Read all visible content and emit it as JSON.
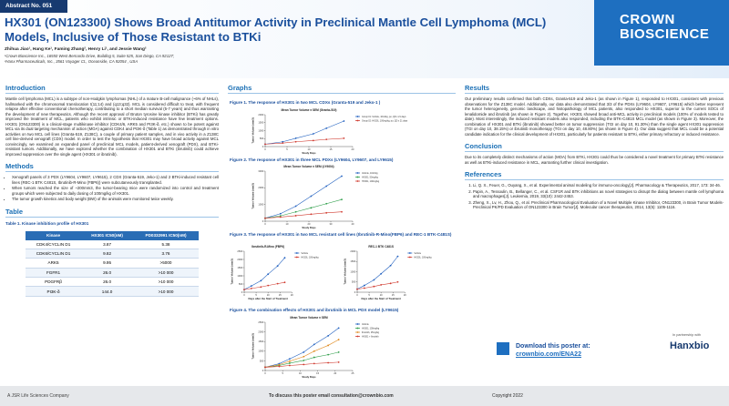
{
  "header": {
    "abstract": "Abstract No. 051",
    "title": "HX301 (ON123300) Shows Broad Antitumor Activity in Preclinical Mantle Cell Lymphoma (MCL) Models, Inclusive of Those Resistant to BTKi",
    "authors": "Zhihua Jiao¹, Hang Ke¹, Faming Zhang², Henry Li¹, and Jessie Wang²",
    "affiliations": [
      "¹Crown Bioscience Inc., 16550 West Bernardo Drive, Building 5, Suite 525, San Diego, CA 92127;",
      "²Hanx Pharmaceuticals, Inc., 3561 Voyager Ct., Oceanside, CA 92054 , USA"
    ],
    "logo": [
      "CROWN",
      "BIOSCIENCE"
    ]
  },
  "introduction": {
    "heading": "Introduction",
    "text": "Mantle cell lymphoma (MCL) is a subtype of non-Hodgkin lymphomas (NHL) of a mature B-cell malignance (~6% of NHLs), hallmarked with the chromosomal translocation t(11;14) and (q13;q32). MCL is considered difficult to treat, with frequent relapse after effective conventional chemotherapy, contributing to a short median survival (5-7 years) and thus warranting the development of new therapeutics. Although the recent approval of Bruton tyrosine kinase inhibitor (BTKi) has greatly improved the treatment of MCL, patients who exhibit intrinsic or BTKi-induced resistance have few treatment options. HX301 (ON123300) is a clinical-stage multikinase inhibitor (CDK4/6, ARK5 and PI3K-δ, etc.) shown to be potent against MCL via its dual targeting mechanism of action (MOA) against CDK4 and PI3K-δ (Table 1) as demonstrated through in vitro activities on two MCL cell lines (Granta-519, Z138C), a couple of primary patient samples, and in vivo activity in a Z138C cell line-derived xenograft (CDX) model. In order to test the hypothesis that HX301 may have broad activity against MCL convincingly, we examined an expanded panel of preclinical MCL models, patient-derived xenograft (PDX), and BTKi-resistant tumors. Additionally, we have explored whether the combination of HX301 and BTKi (ibrutinib) could achieve improved suppression over the single agent (HX301 or ibrutinib)."
  },
  "methods": {
    "heading": "Methods",
    "bullets": [
      "Xenograft panels of 3 PDX (LY9604, LY9607, LY9615), 2 CDX (Granta-519, Jeko-1) and 2 BTKi-induced resistant cell lines (REC-1 BTK C481S, Ibrutinib-R-Mino (FBP6)) were subcutaneously transplanted.",
      "When tumors reached the size of ~200mm3, the tumor-bearing mice were randomized into control and treatment groups which were subjected to daily dosing of 100mg/kg of HX301.",
      "The tumor growth kinetics and body weight (BW) of the animals were monitored twice weekly."
    ]
  },
  "table": {
    "heading": "Table",
    "caption": "Table 1. Kinase inhibition profile of HX301",
    "columns": [
      "Kinase",
      "HX301 IC50(nM)",
      "PD0332991 IC50(nM)"
    ],
    "rows": [
      [
        "CDK4/CYCLIN D1",
        "3.87",
        "5.38"
      ],
      [
        "CDK6/CYCLIN D1",
        "9.82",
        "3.76"
      ],
      [
        "ARK5",
        "9.95",
        ">5000"
      ],
      [
        "FGFR1",
        "26.0",
        ">10 000"
      ],
      [
        "PDGFRβ",
        "26.0",
        ">10 000"
      ],
      [
        "PI3K-δ",
        "144.0",
        ">10 000"
      ]
    ]
  },
  "graphs": {
    "heading": "Graphs",
    "figures": [
      {
        "caption": "Figure 1. The response of HX301 in two MCL CDXs (Granta-519 and Jeko-1 )",
        "charts": [
          {
            "type": "line",
            "title": "Mean Tumor Volume ± SEM (Granta-519)",
            "x_label": "Study Days",
            "y_label": "Tumor Volume (mm3)",
            "x": [
              0,
              4,
              7,
              11,
              14,
              18
            ],
            "xlim": [
              0,
              20
            ],
            "xticks": [
              0,
              5,
              10,
              15,
              20
            ],
            "ylim": [
              0,
              2000
            ],
            "yticks": [
              0,
              500,
              1000,
              1500,
              2000
            ],
            "series": [
              {
                "name": "Group 01: Vehicle, 10ml/kg, po, QD x 21 days",
                "color": "#1f5fbf",
                "values": [
                  150,
                  300,
                  520,
                  800,
                  1150,
                  1600
                ]
              },
              {
                "name": "Group 02: HX301, 100mg/kg, po, QD x 21 days",
                "color": "#d03a2f",
                "values": [
                  150,
                  220,
                  300,
                  380,
                  450,
                  520
                ]
              }
            ]
          }
        ]
      },
      {
        "caption": "Figure 2. The response of HX301 in three MCL PDXs (LY9604, LY9607, and LY9615)",
        "charts": [
          {
            "type": "line",
            "title": "Mean Tumor Volume ± SEM (LY9604)",
            "x_label": "Study Days",
            "y_label": "Tumor Volume (mm3)",
            "x": [
              0,
              7,
              14,
              21,
              28,
              35
            ],
            "xlim": [
              0,
              40
            ],
            "xticks": [
              0,
              10,
              20,
              30,
              40
            ],
            "ylim": [
              0,
              3000
            ],
            "yticks": [
              0,
              1000,
              2000,
              3000
            ],
            "series": [
              {
                "name": "Vehicle, 10ml/kg",
                "color": "#1f5fbf",
                "values": [
                  180,
                  450,
                  900,
                  1500,
                  2100,
                  2700
                ]
              },
              {
                "name": "HX301, 50mg/kg",
                "color": "#2e9e4a",
                "values": [
                  180,
                  320,
                  560,
                  800,
                  1050,
                  1300
                ]
              },
              {
                "name": "HX301, 100mg/kg",
                "color": "#d03a2f",
                "values": [
                  180,
                  250,
                  330,
                  420,
                  500,
                  560
                ]
              }
            ]
          }
        ]
      },
      {
        "caption": "Figure 3. The response of HX301 in two MCL resistant cell lines (Ibrutinib-R-Mino(FBP6) and REC-1 BTK-C481S)",
        "charts": [
          {
            "type": "line",
            "title": "Ibrutinib-R-Mino (FBP6)",
            "x_label": "Days after the Start of Treatment",
            "y_label": "Tumor Volume (mm3)",
            "x": [
              0,
              3,
              7,
              10,
              14,
              17
            ],
            "xlim": [
              0,
              20
            ],
            "xticks": [
              0,
              5,
              10,
              15,
              20
            ],
            "ylim": [
              0,
              2500
            ],
            "yticks": [
              0,
              500,
              1000,
              1500,
              2000,
              2500
            ],
            "series": [
              {
                "name": "Vehicle",
                "color": "#1f5fbf",
                "values": [
                  160,
                  380,
                  700,
                  1100,
                  1600,
                  2100
                ]
              },
              {
                "name": "HX301, 100mg/kg",
                "color": "#d03a2f",
                "values": [
                  160,
                  230,
                  320,
                  410,
                  520,
                  600
                ]
              }
            ]
          },
          {
            "type": "line",
            "title": "REC-1 BTK C481S",
            "x_label": "Days after the Start of Treatment",
            "y_label": "Tumor Volume (mm3)",
            "x": [
              0,
              3,
              7,
              10,
              14,
              17
            ],
            "xlim": [
              0,
              20
            ],
            "xticks": [
              0,
              5,
              10,
              15,
              20
            ],
            "ylim": [
              0,
              2000
            ],
            "yticks": [
              0,
              500,
              1000,
              1500,
              2000
            ],
            "series": [
              {
                "name": "Vehicle",
                "color": "#1f5fbf",
                "values": [
                  150,
                  330,
                  600,
                  900,
                  1300,
                  1750
                ]
              },
              {
                "name": "HX301, 100mg/kg",
                "color": "#d03a2f",
                "values": [
                  150,
                  200,
                  280,
                  360,
                  430,
                  500
                ]
              }
            ]
          }
        ]
      },
      {
        "caption": "Figure 4. The combination effects of HX301 and ibrutinib in MCL PDX model (LY9615)",
        "charts": [
          {
            "type": "line",
            "title": "Mean Tumor Volume ± SEM",
            "x_label": "Study Days",
            "y_label": "Tumor Volume (mm3)",
            "x": [
              0,
              4,
              7,
              11,
              14,
              18,
              21
            ],
            "xlim": [
              0,
              25
            ],
            "xticks": [
              0,
              5,
              10,
              15,
              20,
              25
            ],
            "ylim": [
              0,
              2500
            ],
            "yticks": [
              0,
              500,
              1000,
              1500,
              2000,
              2500
            ],
            "series": [
              {
                "name": "Vehicle",
                "color": "#1f5fbf",
                "values": [
                  170,
                  350,
                  600,
                  950,
                  1350,
                  1800,
                  2200
                ]
              },
              {
                "name": "HX301, 100mg/kg",
                "color": "#2e9e4a",
                "values": [
                  170,
                  260,
                  380,
                  520,
                  680,
                  820,
                  950
                ]
              },
              {
                "name": "Ibrutinib, 25mg/kg",
                "color": "#e08a1e",
                "values": [
                  170,
                  300,
                  480,
                  720,
                  1000,
                  1300,
                  1600
                ]
              },
              {
                "name": "HX301 + Ibrutinib",
                "color": "#d03a2f",
                "values": [
                  170,
                  210,
                  260,
                  310,
                  360,
                  400,
                  430
                ]
              }
            ]
          }
        ]
      }
    ]
  },
  "results": {
    "heading": "Results",
    "text": "Our preliminary results confirmed that both CDXs, Granta-519 and Jeko-1 (as shown in Figure 1), responded to HX301, consistent with previous observations for the Z138C model. Additionally, our data also demonstrated that 3/3 of the PDXs (LY9604, LY9607, LY9615) which better represent the tumor heterogeneity, genomic landscape, and histopathology of MCL patients, also responded to HX301, superior to the current SOCs of lenalidomide and ibrutinib (as shown in Figure 2). Together, HX301 showed broad anti-MCL activity in preclinical models (100% of models tested to date). Most interestingly, the induced resistant models also responded, including the BTK-C481S MCL model (as shown in Figure 3). Moreover, the combination of HX301 and BTKi (ibrutinib) showed better on tumor suppression (TGI on day 10, 91.30%) than the single agent HX301 suppression (TGI on day 10, 38.15%) or ibrutinib monotherapy (TGI on day 10, 48.80%) (as shown in Figure 4). Our data suggest that MCL could be a potential candidate indication for the clinical development of HX301, particularly for patients resistant to BTKi, either primary refractory or induced resistance."
  },
  "conclusion": {
    "heading": "Conclusion",
    "text": "Due to its completely distinct mechanisms of action (MOA) from BTKi, HX301 could thus be considered a novel treatment for primary BTKi resistance as well as BTKi-induced resistance in MCL, warranting further clinical investigation."
  },
  "references": {
    "heading": "References",
    "items": [
      "Li, Q. X., Feuer, G., Ouyang, X., et al. Experimental animal modeling for immuno-oncology[J]. Pharmacology & Therapeutics, 2017, 173: 34-46.",
      "Papin, A., Tessoulin, B., Bellanger, C., et al. CSF1R and BTK inhibitions as novel strategies to disrupt the dialog between mantle cell lymphoma and macrophages[J]. Leukemia, 2019, 33(10): 2442-2453.",
      "Zheng, X., Lv, H., Zhou, Q., et al. Preclinical Pharmacological Evaluation of a Novel Multiple Kinase Inhibitor, ON123300, in Brain Tumor Models-Preclinical PK/PD Evaluation of ON123300 in Brain Tumor[J]. Molecular cancer therapeutics, 2014, 13(5): 1105-1116."
    ]
  },
  "download": {
    "text": "Download this poster at:",
    "link": "crownbio.com/ENA22"
  },
  "partner": {
    "label": "In partnership with",
    "name": "Hanxbio"
  },
  "footer": {
    "company": "A JSR Life Sciences Company",
    "email_text": "To discuss this poster email consultation@crownbio.com",
    "copyright": "Copyright 2022"
  }
}
